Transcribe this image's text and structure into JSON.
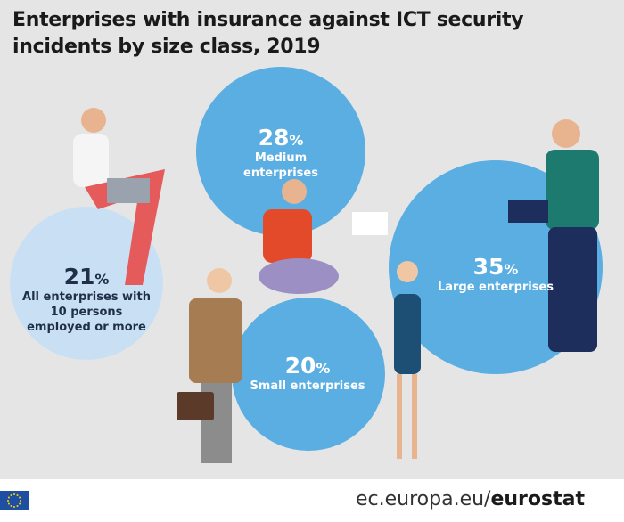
{
  "title": "Enterprises with insurance against ICT security incidents by size class, 2019",
  "items": [
    {
      "value": 28,
      "unit": "%",
      "label": "Medium enterprises"
    },
    {
      "value": 21,
      "unit": "%",
      "label": "All enterprises with 10 persons employed or more"
    },
    {
      "value": 20,
      "unit": "%",
      "label": "Small enterprises"
    },
    {
      "value": 35,
      "unit": "%",
      "label": "Large enterprises"
    }
  ],
  "footer": {
    "domain": "ec.europa.eu/",
    "brand": "eurostat"
  }
}
